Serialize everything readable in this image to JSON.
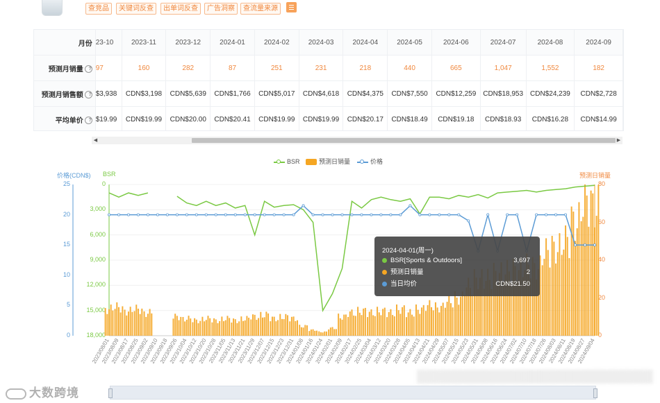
{
  "toolbar": {
    "tags": [
      "查竞品",
      "关键词反查",
      "出单词反查",
      "广告洞察",
      "查流量来源"
    ]
  },
  "table": {
    "header_label": "月份",
    "months": [
      "23-10",
      "2023-11",
      "2023-12",
      "2024-01",
      "2024-02",
      "2024-03",
      "2024-04",
      "2024-05",
      "2024-06",
      "2024-07",
      "2024-08",
      "2024-09"
    ],
    "rows": [
      {
        "label": "预测月销量",
        "values": [
          "97",
          "160",
          "282",
          "87",
          "251",
          "231",
          "218",
          "440",
          "665",
          "1,047",
          "1,552",
          "182"
        ]
      },
      {
        "label": "预测月销售额",
        "values": [
          "$3,938",
          "CDN$3,198",
          "CDN$5,639",
          "CDN$1,766",
          "CDN$5,017",
          "CDN$4,618",
          "CDN$4,375",
          "CDN$7,550",
          "CDN$12,259",
          "CDN$18,953",
          "CDN$24,239",
          "CDN$2,728"
        ]
      },
      {
        "label": "平均单价",
        "values": [
          "$19.99",
          "CDN$19.99",
          "CDN$20.00",
          "CDN$20.41",
          "CDN$19.99",
          "CDN$19.99",
          "CDN$20.17",
          "CDN$18.49",
          "CDN$19.18",
          "CDN$18.93",
          "CDN$16.28",
          "CDN$14.99"
        ]
      }
    ],
    "row_help_icons": [
      "help-icon",
      "help-icon",
      "help-icon"
    ]
  },
  "chart_data": {
    "type": "line",
    "legend": [
      "BSR",
      "预测日销量",
      "价格"
    ],
    "axes": {
      "price": {
        "title": "价格(CDN$)",
        "ticks": [
          "25",
          "20",
          "15",
          "10",
          "5",
          "0"
        ],
        "range": [
          0,
          25
        ]
      },
      "bsr": {
        "title": "BSR",
        "ticks": [
          "0",
          "3,000",
          "6,000",
          "9,000",
          "12,000",
          "15,000",
          "18,000"
        ],
        "range": [
          0,
          18000
        ],
        "inverted": true
      },
      "sales": {
        "title": "预测日销量",
        "ticks": [
          "80",
          "60",
          "40",
          "20",
          "0"
        ],
        "range": [
          0,
          80
        ]
      }
    },
    "x_labels": [
      "2023/08/01",
      "2023/08/09",
      "2023/08/17",
      "2023/08/25",
      "2023/09/02",
      "2023/09/10",
      "2023/09/18",
      "2023/09/26",
      "2023/10/04",
      "2023/10/12",
      "2023/10/20",
      "2023/10/28",
      "2023/11/05",
      "2023/11/13",
      "2023/11/21",
      "2023/11/29",
      "2023/12/07",
      "2023/12/15",
      "2023/12/23",
      "2023/12/31",
      "2024/01/08",
      "2024/01/16",
      "2024/01/24",
      "2024/02/01",
      "2024/02/09",
      "2024/02/17",
      "2024/02/25",
      "2024/03/04",
      "2024/03/12",
      "2024/03/20",
      "2024/03/28",
      "2024/04/05",
      "2024/04/13",
      "2024/04/21",
      "2024/04/29",
      "2024/05/07",
      "2024/05/15",
      "2024/05/23",
      "2024/05/31",
      "2024/06/08",
      "2024/06/16",
      "2024/06/24",
      "2024/07/02",
      "2024/07/10",
      "2024/07/18",
      "2024/07/26",
      "2024/08/03",
      "2024/08/11",
      "2024/08/19",
      "2024/08/27",
      "2024/09/04"
    ],
    "series": [
      {
        "name": "BSR",
        "color": "#7ac943",
        "values": [
          1000,
          1500,
          1000,
          1300,
          1000,
          null,
          null,
          1400,
          2200,
          2500,
          2000,
          2500,
          2200,
          2800,
          2500,
          6000,
          2000,
          2700,
          2500,
          2400,
          3000,
          4500,
          15000,
          13000,
          10000,
          2000,
          2800,
          1800,
          1500,
          1800,
          2000,
          1700,
          3500,
          1500,
          1500,
          1700,
          1300,
          1500,
          1200,
          1600,
          1000,
          900,
          800,
          700,
          900,
          700,
          600,
          500,
          300,
          200,
          100
        ]
      },
      {
        "name": "预测日销量",
        "color": "#f5a623",
        "values": [
          14,
          15,
          13,
          14,
          12,
          null,
          null,
          10,
          9,
          8,
          9,
          8,
          9,
          8,
          9,
          10,
          11,
          9,
          10,
          9,
          5,
          3,
          2,
          4,
          10,
          12,
          13,
          12,
          13,
          12,
          14,
          12,
          14,
          16,
          15,
          18,
          20,
          26,
          30,
          30,
          33,
          34,
          35,
          37,
          36,
          44,
          46,
          50,
          60,
          70,
          68
        ]
      },
      {
        "name": "价格",
        "color": "#5b9bd5",
        "values": [
          20,
          20,
          20,
          20,
          20,
          20,
          20,
          20,
          20,
          20,
          20,
          20,
          20,
          20,
          20,
          20,
          20,
          20,
          20,
          20,
          21.5,
          20,
          20,
          20,
          20,
          20,
          20,
          20,
          20,
          20,
          20,
          21.5,
          20,
          20,
          20,
          20,
          20,
          19,
          14,
          20,
          14,
          20,
          20,
          14,
          20,
          20,
          20,
          20,
          15,
          15,
          15
        ]
      }
    ]
  },
  "tooltip": {
    "title": "2024-04-01(周一)",
    "rows": [
      {
        "label": "BSR[Sports & Outdoors]",
        "value": "3,697",
        "color": "#7ac943"
      },
      {
        "label": "预测日销量",
        "value": "2",
        "color": "#f5a623"
      },
      {
        "label": "当日均价",
        "value": "CDN$21.50",
        "color": "#5b9bd5"
      }
    ]
  },
  "watermark": {
    "text": "大数跨境"
  }
}
